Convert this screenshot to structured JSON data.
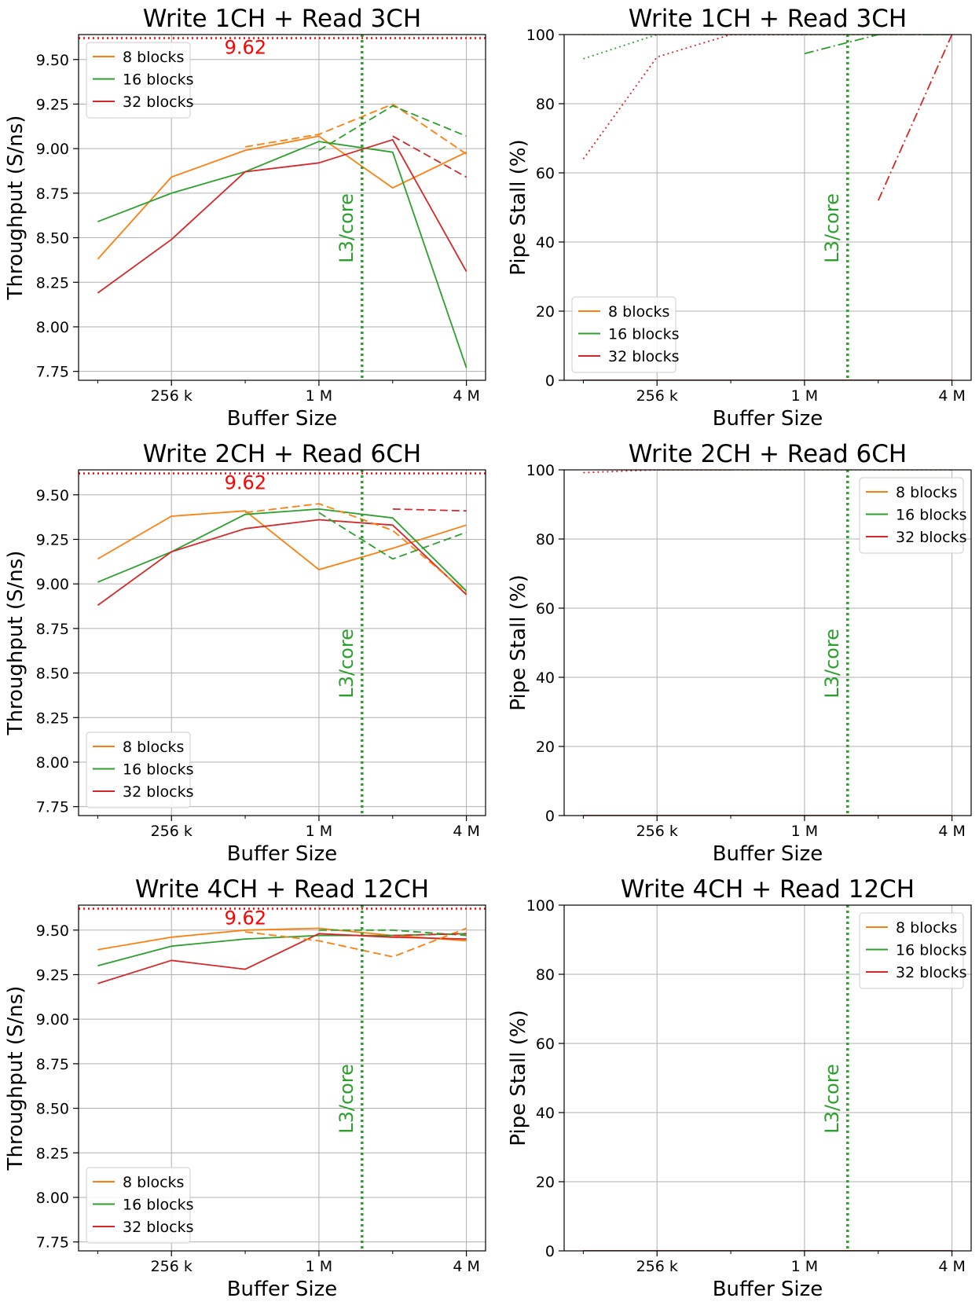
{
  "colors": {
    "orange": "#ff7f0e",
    "green": "#2ca02c",
    "red": "#d62728",
    "grid": "#b0b0b0",
    "ref_line": "#ff0000",
    "l3_line": "#2ca02c"
  },
  "chart_data": [
    {
      "id": "r0c0",
      "type": "line",
      "title": "Write 1CH + Read 3CH",
      "xlabel": "Buffer Size",
      "ylabel": "Throughput (S/ns)",
      "x_scale": "log2",
      "x_tick_labels": [
        "256 k",
        "1 M",
        "4 M"
      ],
      "x_tick_values": [
        256,
        1024,
        4096
      ],
      "ylim": [
        7.7,
        9.64
      ],
      "y_ticks": [
        7.75,
        8.0,
        8.25,
        8.5,
        8.75,
        9.0,
        9.25,
        9.5
      ],
      "y_tick_labels": [
        "7.75",
        "8.00",
        "8.25",
        "8.50",
        "8.75",
        "9.00",
        "9.25",
        "9.50"
      ],
      "grid": true,
      "legend": "top-left",
      "ref_line": {
        "value": 9.62,
        "label": "9.62"
      },
      "l3_line": {
        "x": 1536,
        "label": "L3/core"
      },
      "series": [
        {
          "name": "8 blocks",
          "color": "orange",
          "style": "solid",
          "x": [
            128,
            256,
            512,
            1024,
            2048,
            4096
          ],
          "values": [
            8.38,
            8.84,
            8.99,
            9.07,
            8.78,
            8.98
          ]
        },
        {
          "name": "16 blocks",
          "color": "green",
          "style": "solid",
          "x": [
            128,
            256,
            512,
            1024,
            2048,
            4096
          ],
          "values": [
            8.59,
            8.75,
            8.87,
            9.04,
            8.98,
            7.77
          ]
        },
        {
          "name": "32 blocks",
          "color": "red",
          "style": "solid",
          "x": [
            128,
            256,
            512,
            1024,
            2048,
            4096
          ],
          "values": [
            8.19,
            8.49,
            8.87,
            8.92,
            9.05,
            8.31
          ]
        },
        {
          "color": "orange",
          "style": "dashed",
          "x": [
            512,
            1024,
            2048,
            4096
          ],
          "values": [
            9.01,
            9.08,
            9.25,
            8.97
          ]
        },
        {
          "color": "green",
          "style": "dashed",
          "x": [
            1024,
            2048,
            4096
          ],
          "values": [
            8.99,
            9.24,
            9.07
          ]
        },
        {
          "color": "red",
          "style": "dashed",
          "x": [
            2048,
            4096
          ],
          "values": [
            9.07,
            8.84
          ]
        }
      ]
    },
    {
      "id": "r0c1",
      "type": "line",
      "title": "Write 1CH + Read 3CH",
      "xlabel": "Buffer Size",
      "ylabel": "Pipe Stall (%)",
      "x_scale": "log2",
      "x_tick_labels": [
        "256 k",
        "1 M",
        "4 M"
      ],
      "x_tick_values": [
        256,
        1024,
        4096
      ],
      "ylim": [
        0,
        100
      ],
      "y_ticks": [
        0,
        20,
        40,
        60,
        80,
        100
      ],
      "y_tick_labels": [
        "0",
        "20",
        "40",
        "60",
        "80",
        "100"
      ],
      "grid": true,
      "legend": "bottom-left",
      "l3_line": {
        "x": 1536,
        "label": "L3/core"
      },
      "series": [
        {
          "name": "8 blocks",
          "color": "orange",
          "style": "solid",
          "x": [
            128,
            256,
            512,
            1024,
            2048,
            4096
          ],
          "values": [
            0,
            0,
            0,
            0,
            0,
            0
          ]
        },
        {
          "name": "16 blocks",
          "color": "green",
          "style": "solid",
          "x": [
            128,
            256,
            512,
            1024,
            2048,
            4096
          ],
          "values": [
            0,
            0,
            0,
            0,
            0,
            0
          ]
        },
        {
          "name": "32 blocks",
          "color": "red",
          "style": "solid",
          "x": [
            128,
            256,
            512,
            1024,
            2048,
            4096
          ],
          "values": [
            0,
            0,
            0,
            0,
            0,
            0
          ]
        },
        {
          "color": "orange",
          "style": "dotted",
          "x": [
            128,
            256,
            512,
            1024,
            2048,
            4096
          ],
          "values": [
            100,
            100,
            100,
            100,
            100,
            100
          ]
        },
        {
          "color": "green",
          "style": "dotted",
          "x": [
            128,
            256,
            512,
            1024,
            2048,
            4096
          ],
          "values": [
            93,
            100,
            100,
            100,
            100,
            100
          ]
        },
        {
          "color": "red",
          "style": "dotted",
          "x": [
            128,
            256,
            512,
            1024
          ],
          "values": [
            64,
            93.5,
            100,
            100
          ]
        },
        {
          "color": "green",
          "style": "dashdot",
          "x": [
            1024,
            2048,
            4096
          ],
          "values": [
            94.5,
            100,
            100
          ]
        },
        {
          "color": "red",
          "style": "dashdot",
          "x": [
            2048,
            4096
          ],
          "values": [
            52,
            100
          ]
        }
      ]
    },
    {
      "id": "r1c0",
      "type": "line",
      "title": "Write 2CH + Read 6CH",
      "xlabel": "Buffer Size",
      "ylabel": "Throughput (S/ns)",
      "x_scale": "log2",
      "x_tick_labels": [
        "256 k",
        "1 M",
        "4 M"
      ],
      "x_tick_values": [
        256,
        1024,
        4096
      ],
      "ylim": [
        7.7,
        9.64
      ],
      "y_ticks": [
        7.75,
        8.0,
        8.25,
        8.5,
        8.75,
        9.0,
        9.25,
        9.5
      ],
      "y_tick_labels": [
        "7.75",
        "8.00",
        "8.25",
        "8.50",
        "8.75",
        "9.00",
        "9.25",
        "9.50"
      ],
      "grid": true,
      "legend": "bottom-left",
      "ref_line": {
        "value": 9.62,
        "label": "9.62"
      },
      "l3_line": {
        "x": 1536,
        "label": "L3/core"
      },
      "series": [
        {
          "name": "8 blocks",
          "color": "orange",
          "style": "solid",
          "x": [
            128,
            256,
            512,
            1024,
            2048,
            4096
          ],
          "values": [
            9.14,
            9.38,
            9.41,
            9.08,
            9.2,
            9.33
          ]
        },
        {
          "name": "16 blocks",
          "color": "green",
          "style": "solid",
          "x": [
            128,
            256,
            512,
            1024,
            2048,
            4096
          ],
          "values": [
            9.01,
            9.18,
            9.39,
            9.42,
            9.37,
            8.96
          ]
        },
        {
          "name": "32 blocks",
          "color": "red",
          "style": "solid",
          "x": [
            128,
            256,
            512,
            1024,
            2048,
            4096
          ],
          "values": [
            8.88,
            9.18,
            9.31,
            9.36,
            9.33,
            8.94
          ]
        },
        {
          "color": "orange",
          "style": "dashed",
          "x": [
            512,
            1024,
            2048,
            4096
          ],
          "values": [
            9.4,
            9.45,
            9.3,
            8.95
          ]
        },
        {
          "color": "green",
          "style": "dashed",
          "x": [
            1024,
            2048,
            4096
          ],
          "values": [
            9.4,
            9.14,
            9.29
          ]
        },
        {
          "color": "red",
          "style": "dashed",
          "x": [
            2048,
            4096
          ],
          "values": [
            9.42,
            9.41
          ]
        }
      ]
    },
    {
      "id": "r1c1",
      "type": "line",
      "title": "Write 2CH + Read 6CH",
      "xlabel": "Buffer Size",
      "ylabel": "Pipe Stall (%)",
      "x_scale": "log2",
      "x_tick_labels": [
        "256 k",
        "1 M",
        "4 M"
      ],
      "x_tick_values": [
        256,
        1024,
        4096
      ],
      "ylim": [
        0,
        100
      ],
      "y_ticks": [
        0,
        20,
        40,
        60,
        80,
        100
      ],
      "y_tick_labels": [
        "0",
        "20",
        "40",
        "60",
        "80",
        "100"
      ],
      "grid": true,
      "legend": "top-right",
      "l3_line": {
        "x": 1536,
        "label": "L3/core"
      },
      "series": [
        {
          "name": "8 blocks",
          "color": "orange",
          "style": "solid",
          "x": [
            128,
            256,
            512,
            1024,
            2048,
            4096
          ],
          "values": [
            0,
            0,
            0,
            0,
            0,
            0
          ]
        },
        {
          "name": "16 blocks",
          "color": "green",
          "style": "solid",
          "x": [
            128,
            256,
            512,
            1024,
            2048,
            4096
          ],
          "values": [
            0,
            0,
            0,
            0,
            0,
            0
          ]
        },
        {
          "name": "32 blocks",
          "color": "red",
          "style": "solid",
          "x": [
            128,
            256,
            512,
            1024,
            2048,
            4096
          ],
          "values": [
            0,
            0,
            0,
            0,
            0,
            0
          ]
        },
        {
          "color": "red",
          "style": "dotted",
          "x": [
            128,
            256,
            512
          ],
          "values": [
            99.2,
            100,
            100
          ]
        },
        {
          "color": "orange",
          "style": "dotted",
          "x": [
            256,
            512,
            1024,
            2048,
            4096
          ],
          "values": [
            100,
            100,
            100,
            100,
            100
          ]
        }
      ]
    },
    {
      "id": "r2c0",
      "type": "line",
      "title": "Write 4CH + Read 12CH",
      "xlabel": "Buffer Size",
      "ylabel": "Throughput (S/ns)",
      "x_scale": "log2",
      "x_tick_labels": [
        "256 k",
        "1 M",
        "4 M"
      ],
      "x_tick_values": [
        256,
        1024,
        4096
      ],
      "ylim": [
        7.7,
        9.64
      ],
      "y_ticks": [
        7.75,
        8.0,
        8.25,
        8.5,
        8.75,
        9.0,
        9.25,
        9.5
      ],
      "y_tick_labels": [
        "7.75",
        "8.00",
        "8.25",
        "8.50",
        "8.75",
        "9.00",
        "9.25",
        "9.50"
      ],
      "grid": true,
      "legend": "bottom-left",
      "ref_line": {
        "value": 9.62,
        "label": "9.62"
      },
      "l3_line": {
        "x": 1536,
        "label": "L3/core"
      },
      "series": [
        {
          "name": "8 blocks",
          "color": "orange",
          "style": "solid",
          "x": [
            128,
            256,
            512,
            1024,
            2048,
            4096
          ],
          "values": [
            9.39,
            9.46,
            9.5,
            9.51,
            9.47,
            9.44
          ]
        },
        {
          "name": "16 blocks",
          "color": "green",
          "style": "solid",
          "x": [
            128,
            256,
            512,
            1024,
            2048,
            4096
          ],
          "values": [
            9.3,
            9.41,
            9.45,
            9.47,
            9.47,
            9.48
          ]
        },
        {
          "name": "32 blocks",
          "color": "red",
          "style": "solid",
          "x": [
            128,
            256,
            512,
            1024,
            2048,
            4096
          ],
          "values": [
            9.2,
            9.33,
            9.28,
            9.48,
            9.46,
            9.45
          ]
        },
        {
          "color": "orange",
          "style": "dashed",
          "x": [
            512,
            1024,
            2048,
            4096
          ],
          "values": [
            9.49,
            9.44,
            9.35,
            9.51
          ]
        },
        {
          "color": "green",
          "style": "dashed",
          "x": [
            1024,
            2048,
            4096
          ],
          "values": [
            9.5,
            9.5,
            9.47
          ]
        },
        {
          "color": "red",
          "style": "dashed",
          "x": [
            2048,
            4096
          ],
          "values": [
            9.47,
            9.48
          ]
        }
      ]
    },
    {
      "id": "r2c1",
      "type": "line",
      "title": "Write 4CH + Read 12CH",
      "xlabel": "Buffer Size",
      "ylabel": "Pipe Stall (%)",
      "x_scale": "log2",
      "x_tick_labels": [
        "256 k",
        "1 M",
        "4 M"
      ],
      "x_tick_values": [
        256,
        1024,
        4096
      ],
      "ylim": [
        0,
        100
      ],
      "y_ticks": [
        0,
        20,
        40,
        60,
        80,
        100
      ],
      "y_tick_labels": [
        "0",
        "20",
        "40",
        "60",
        "80",
        "100"
      ],
      "grid": true,
      "legend": "top-right",
      "l3_line": {
        "x": 1536,
        "label": "L3/core"
      },
      "series": [
        {
          "name": "8 blocks",
          "color": "orange",
          "style": "solid",
          "x": [
            128,
            256,
            512,
            1024,
            2048,
            4096
          ],
          "values": [
            0,
            0,
            0,
            0,
            0,
            0
          ]
        },
        {
          "name": "16 blocks",
          "color": "green",
          "style": "solid",
          "x": [
            128,
            256,
            512,
            1024,
            2048,
            4096
          ],
          "values": [
            0,
            0,
            0,
            0,
            0,
            0
          ]
        },
        {
          "name": "32 blocks",
          "color": "red",
          "style": "solid",
          "x": [
            128,
            256,
            512,
            1024,
            2048,
            4096
          ],
          "values": [
            0,
            0,
            0,
            0,
            0,
            0
          ]
        }
      ]
    }
  ]
}
